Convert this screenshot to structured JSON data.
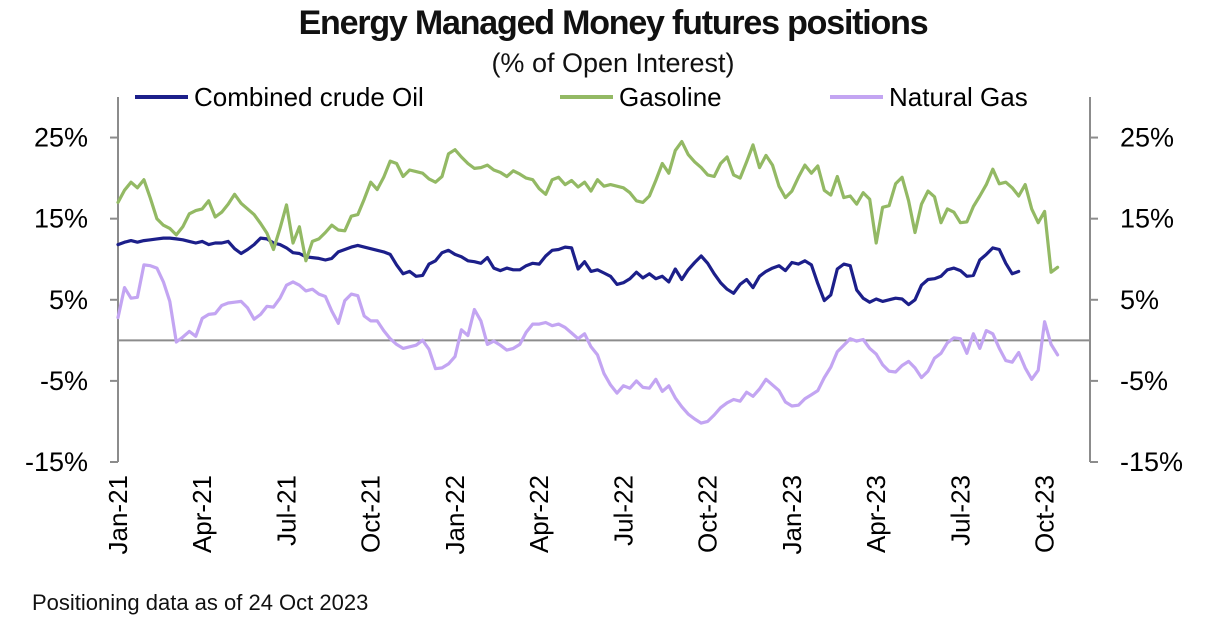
{
  "chart_data": {
    "type": "line",
    "title": "Energy Managed Money futures positions",
    "subtitle": "(% of Open Interest)",
    "footnote": "Positioning data as of 24 Oct 2023",
    "x_tick_labels": [
      "Jan-21",
      "Apr-21",
      "Jul-21",
      "Oct-21",
      "Jan-22",
      "Apr-22",
      "Jul-22",
      "Oct-22",
      "Jan-23",
      "Apr-23",
      "Jul-23",
      "Oct-23"
    ],
    "y_tick_labels": [
      "25%",
      "15%",
      "5%",
      "-5%",
      "-15%"
    ],
    "ylim": [
      -15,
      30
    ],
    "x_range_weeks": [
      0,
      150
    ],
    "grid": false,
    "legend_position": "top",
    "series": [
      {
        "name": "Combined crude Oil",
        "color": "#1c1f8a",
        "values": [
          11.8,
          12.1,
          12.3,
          12.1,
          12.3,
          12.4,
          12.5,
          12.6,
          12.6,
          12.5,
          12.4,
          12.2,
          12.0,
          12.2,
          11.8,
          12.0,
          12.0,
          12.2,
          11.3,
          10.7,
          11.2,
          11.8,
          12.6,
          12.5,
          12.0,
          11.8,
          11.4,
          10.8,
          10.7,
          10.3,
          10.2,
          10.1,
          9.9,
          10.1,
          10.9,
          11.2,
          11.5,
          11.7,
          11.5,
          11.3,
          11.1,
          10.9,
          10.6,
          9.3,
          8.2,
          8.5,
          7.9,
          8.0,
          9.4,
          9.8,
          10.8,
          11.1,
          10.6,
          10.3,
          9.8,
          9.7,
          9.5,
          10.2,
          8.9,
          8.6,
          8.9,
          8.7,
          8.7,
          9.2,
          9.5,
          9.4,
          10.4,
          11.1,
          11.2,
          11.5,
          11.4,
          8.8,
          9.7,
          8.5,
          8.7,
          8.3,
          7.9,
          6.9,
          7.1,
          7.6,
          8.4,
          7.7,
          8.2,
          7.6,
          7.9,
          7.2,
          8.8,
          7.5,
          8.7,
          9.6,
          10.4,
          9.5,
          8.2,
          7.1,
          6.3,
          5.8,
          6.9,
          7.5,
          6.5,
          7.9,
          8.5,
          8.9,
          9.2,
          8.6,
          9.6,
          9.4,
          9.8,
          9.3,
          7.0,
          4.9,
          5.6,
          8.8,
          9.4,
          9.2,
          6.2,
          5.2,
          4.7,
          5.1,
          4.8,
          5.0,
          5.2,
          5.1,
          4.4,
          5.0,
          6.8,
          7.5,
          7.6,
          7.9,
          8.7,
          8.9,
          8.6,
          7.9,
          8.0,
          9.9,
          10.6,
          11.4,
          11.2,
          9.5,
          8.2,
          8.5
        ]
      },
      {
        "name": "Gasoline",
        "color": "#93b964",
        "values": [
          17.0,
          18.5,
          19.5,
          18.8,
          19.8,
          17.5,
          15.0,
          14.2,
          13.8,
          13.0,
          14.0,
          15.6,
          16.0,
          16.2,
          17.2,
          15.2,
          15.8,
          16.8,
          18.0,
          16.9,
          16.2,
          15.5,
          14.4,
          13.2,
          11.2,
          13.8,
          16.7,
          12.0,
          14.0,
          9.8,
          12.2,
          12.5,
          13.3,
          14.2,
          13.6,
          13.5,
          15.3,
          15.5,
          17.4,
          19.5,
          18.6,
          20.1,
          22.1,
          21.8,
          20.2,
          21.0,
          20.8,
          20.6,
          19.9,
          19.5,
          20.2,
          23.0,
          23.5,
          22.6,
          21.8,
          21.2,
          21.3,
          21.6,
          21.0,
          20.7,
          20.2,
          20.9,
          20.5,
          20.0,
          19.8,
          18.7,
          18.0,
          19.8,
          20.1,
          19.2,
          19.7,
          18.9,
          19.5,
          18.4,
          19.8,
          19.0,
          19.2,
          19.0,
          18.8,
          18.2,
          17.2,
          17.0,
          17.8,
          19.7,
          21.8,
          20.6,
          23.4,
          24.5,
          22.9,
          22.0,
          21.3,
          20.4,
          20.2,
          21.8,
          22.6,
          20.4,
          20.0,
          22.0,
          24.1,
          21.3,
          22.8,
          21.6,
          19.0,
          17.6,
          18.4,
          20.1,
          21.6,
          20.6,
          21.5,
          18.5,
          17.9,
          20.2,
          17.6,
          17.8,
          16.8,
          18.2,
          17.4,
          12.0,
          16.4,
          16.6,
          19.3,
          20.1,
          17.2,
          13.3,
          16.8,
          18.4,
          17.7,
          14.5,
          16.2,
          15.8,
          14.5,
          14.6,
          16.5,
          17.8,
          19.2,
          21.1,
          19.3,
          19.5,
          18.8,
          17.8,
          19.2,
          16.2,
          14.5,
          15.9,
          8.4,
          9.0
        ]
      },
      {
        "name": "Natural Gas",
        "color": "#c3a5f2",
        "values": [
          2.8,
          6.5,
          5.2,
          5.3,
          9.3,
          9.2,
          8.9,
          7.2,
          4.8,
          -0.2,
          0.4,
          1.1,
          0.5,
          2.7,
          3.2,
          3.3,
          4.3,
          4.6,
          4.7,
          4.8,
          4.0,
          2.6,
          3.2,
          4.2,
          4.1,
          5.2,
          6.8,
          7.2,
          6.8,
          6.1,
          6.3,
          5.7,
          5.4,
          3.6,
          2.1,
          4.9,
          5.7,
          5.5,
          3.0,
          2.4,
          2.4,
          1.2,
          0.2,
          -0.5,
          -1.0,
          -0.8,
          -0.6,
          0.0,
          -1.1,
          -3.5,
          -3.4,
          -2.9,
          -2.0,
          1.3,
          0.6,
          3.8,
          2.4,
          -0.5,
          -0.1,
          -0.6,
          -1.2,
          -1.0,
          -0.5,
          1.0,
          2.0,
          2.0,
          2.2,
          1.8,
          2.0,
          1.6,
          0.9,
          0.2,
          0.8,
          -0.8,
          -1.8,
          -4.1,
          -5.5,
          -6.5,
          -5.6,
          -5.9,
          -5.0,
          -5.8,
          -5.9,
          -4.8,
          -6.3,
          -5.6,
          -7.1,
          -8.2,
          -9.1,
          -9.7,
          -10.2,
          -10.0,
          -9.2,
          -8.3,
          -7.7,
          -7.3,
          -7.5,
          -6.4,
          -6.9,
          -6.0,
          -4.8,
          -5.5,
          -6.2,
          -7.6,
          -8.1,
          -8.0,
          -7.2,
          -6.7,
          -6.2,
          -4.6,
          -3.3,
          -1.4,
          -0.6,
          0.2,
          -0.1,
          0.1,
          -1.0,
          -1.7,
          -3.0,
          -3.8,
          -3.9,
          -3.1,
          -2.6,
          -3.4,
          -4.6,
          -3.8,
          -2.2,
          -1.6,
          -0.3,
          0.3,
          0.2,
          -1.6,
          0.8,
          -1.0,
          1.2,
          0.8,
          -1.0,
          -2.5,
          -2.7,
          -1.5,
          -3.4,
          -4.8,
          -3.7,
          2.3,
          -0.5,
          -1.8
        ]
      }
    ]
  }
}
